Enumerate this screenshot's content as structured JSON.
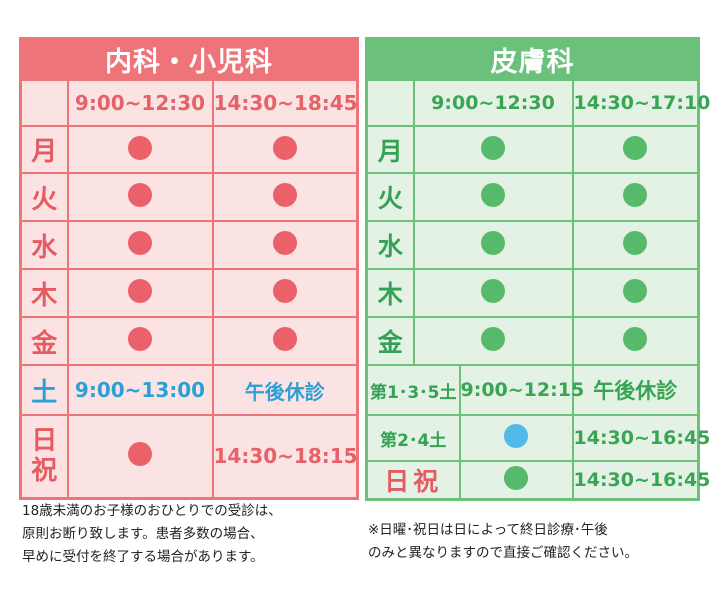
{
  "internal": {
    "title": "内科・小児科",
    "morning": "9:00~12:30",
    "afternoon": "14:30~18:45",
    "weekdays": [
      "月",
      "火",
      "水",
      "木",
      "金"
    ],
    "saturday": {
      "day": "土",
      "morning": "9:00~13:00",
      "afternoon": "午後休診"
    },
    "holiday": {
      "day_line1": "日",
      "day_line2": "祝",
      "afternoon": "14:30~18:15"
    }
  },
  "dermatology": {
    "title": "皮膚科",
    "morning": "9:00~12:30",
    "afternoon": "14:30~17:10",
    "weekdays": [
      "月",
      "火",
      "水",
      "木",
      "金"
    ],
    "sat135": {
      "day": "第1･3･5土",
      "morning": "9:00~12:15",
      "afternoon": "午後休診"
    },
    "sat24": {
      "day": "第2･4土",
      "afternoon": "14:30~16:45"
    },
    "holiday": {
      "day": "日祝",
      "afternoon": "14:30~16:45"
    }
  },
  "notes": {
    "left": "18歳未満のお子様のおひとりでの受診は、\n原則お断り致します。患者多数の場合、\n早めに受付を終了する場合があります。",
    "right": "※日曜･祝日は日によって終日診療･午後\nのみと異なりますので直接ご確認ください。"
  },
  "colors": {
    "internal_accent": "#ee7479",
    "dermatology_accent": "#6bc17a",
    "saturday_blue": "#2e9fd6",
    "holiday_red": "#e55b61"
  },
  "icons": {
    "open": "filled-circle-icon"
  }
}
